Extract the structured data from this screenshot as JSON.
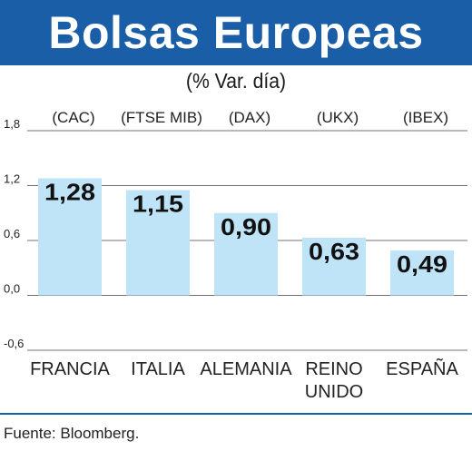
{
  "chart_data": {
    "type": "bar",
    "title": "Bolsas Europeas",
    "subtitle": "(% Var. día)",
    "categories": [
      {
        "name": "FRANCIA",
        "name_line2": "",
        "index": "(CAC)"
      },
      {
        "name": "ITALIA",
        "name_line2": "",
        "index": "(FTSE MIB)"
      },
      {
        "name": "ALEMANIA",
        "name_line2": "",
        "index": "(DAX)"
      },
      {
        "name": "REINO",
        "name_line2": "UNIDO",
        "index": "(UKX)"
      },
      {
        "name": "ESPAÑA",
        "name_line2": "",
        "index": "(IBEX)"
      }
    ],
    "values": [
      1.28,
      1.15,
      0.9,
      0.63,
      0.49
    ],
    "value_labels": [
      "1,28",
      "1,15",
      "0,90",
      "0,63",
      "0,49"
    ],
    "y_ticks": [
      1.8,
      1.2,
      0.6,
      0.0,
      -0.6
    ],
    "y_tick_labels": [
      "1,8",
      "1,2",
      "0,6",
      "0,0",
      "-0,6"
    ],
    "ylim": [
      -0.6,
      1.8
    ],
    "grid": true,
    "bar_color": "#bfe3f7",
    "accent_color": "#1a5ea8"
  },
  "source": "Fuente: Bloomberg."
}
